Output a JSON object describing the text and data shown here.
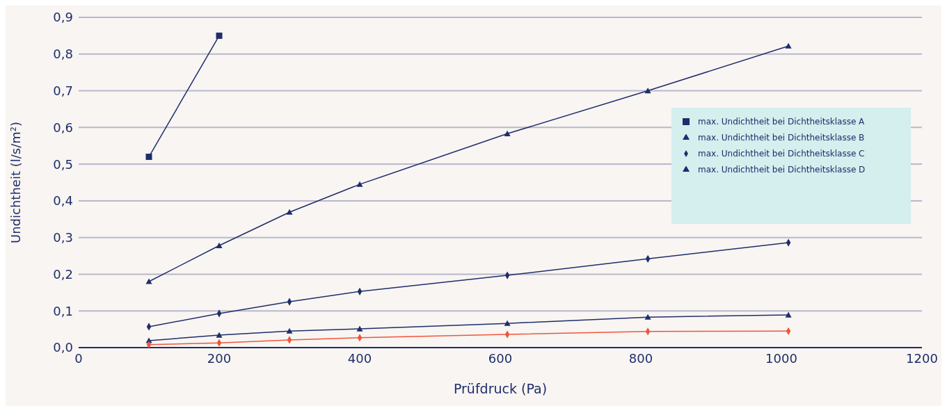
{
  "chart_data": {
    "type": "line",
    "xlabel": "Prüfdruck (Pa)",
    "ylabel": "Undichtheit (l/s/m²)",
    "xlim": [
      0,
      1200
    ],
    "xticks": [
      0,
      200,
      400,
      600,
      800,
      1000,
      1200
    ],
    "ylim": [
      0,
      0.9
    ],
    "yticks": [
      {
        "value": 0,
        "label": "0,0"
      },
      {
        "value": 0.1,
        "label": "0,1"
      },
      {
        "value": 0.2,
        "label": "0,2"
      },
      {
        "value": 0.3,
        "label": "0,3"
      },
      {
        "value": 0.4,
        "label": "0,4"
      },
      {
        "value": 0.5,
        "label": "0,5"
      },
      {
        "value": 0.6,
        "label": "0,6"
      },
      {
        "value": 0.7,
        "label": "0,7"
      },
      {
        "value": 0.8,
        "label": "0,8"
      },
      {
        "value": 0.9,
        "label": "0,9"
      }
    ],
    "grid": "y",
    "legend": "right",
    "line_style": "solid",
    "series": [
      {
        "name": "max. Undichtheit bei Dichtheitsklasse A",
        "color": "#1f2d6b",
        "marker": "square",
        "x": [
          100,
          200
        ],
        "values": [
          0.52,
          0.85
        ]
      },
      {
        "name": "max. Undichtheit bei Dichtheitsklasse B",
        "color": "#1f2d6b",
        "marker": "triangle",
        "x": [
          100,
          200,
          300,
          400,
          610,
          810,
          1010
        ],
        "values": [
          0.019,
          0.034,
          0.045,
          0.051,
          0.066,
          0.083,
          0.089
        ]
      },
      {
        "name": "max. Undichtheit bei Dichtheitsklasse C",
        "color": "#1f2d6b",
        "marker": "diamond",
        "x": [
          100,
          200,
          300,
          400,
          610,
          810,
          1010
        ],
        "values": [
          0.057,
          0.093,
          0.125,
          0.153,
          0.197,
          0.242,
          0.286
        ]
      },
      {
        "name": "max. Undichtheit bei Dichtheitsklasse D",
        "color": "#1f2d6b",
        "marker": "triangle",
        "x": [
          100,
          200,
          300,
          400,
          610,
          810,
          1010
        ],
        "values": [
          0.18,
          0.278,
          0.369,
          0.445,
          0.583,
          0.7,
          0.822
        ]
      },
      {
        "color": "#f0553c",
        "marker": "diamond",
        "x": [
          100,
          200,
          300,
          400,
          610,
          810,
          1010
        ],
        "values": [
          0.008,
          0.013,
          0.021,
          0.027,
          0.036,
          0.044,
          0.045
        ]
      }
    ]
  }
}
